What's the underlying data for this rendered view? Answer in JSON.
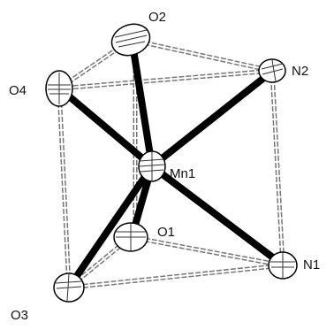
{
  "nodes": [
    {
      "label": "O2"
    },
    {
      "label": "O4"
    },
    {
      "label": "N2"
    },
    {
      "label": "Mn1"
    },
    {
      "label": "O1"
    },
    {
      "label": "N1"
    },
    {
      "label": "O3"
    }
  ]
}
